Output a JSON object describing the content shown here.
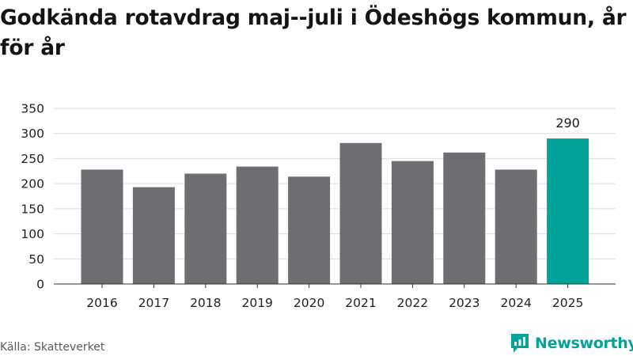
{
  "title": "Godkända rotavdrag maj--juli i Ödeshögs kommun, år för år",
  "source": "Källa: Skatteverket",
  "brand": {
    "name": "Newsworthy",
    "icon": "newsworthy-logo-icon",
    "color": "#00a39a"
  },
  "colors": {
    "bar": "#6e6d72",
    "highlight": "#00a39a",
    "grid": "#dddddd",
    "axis": "#333333"
  },
  "chart_data": {
    "type": "bar",
    "categories": [
      "2016",
      "2017",
      "2018",
      "2019",
      "2020",
      "2021",
      "2022",
      "2023",
      "2024",
      "2025"
    ],
    "values": [
      228,
      193,
      220,
      234,
      214,
      281,
      245,
      262,
      228,
      290
    ],
    "highlight_index": 9,
    "data_labels": [
      {
        "index": 9,
        "text": "290"
      }
    ],
    "ylim": [
      0,
      350
    ],
    "yticks": [
      0,
      50,
      100,
      150,
      200,
      250,
      300,
      350
    ],
    "grid": true,
    "legend": "none"
  }
}
